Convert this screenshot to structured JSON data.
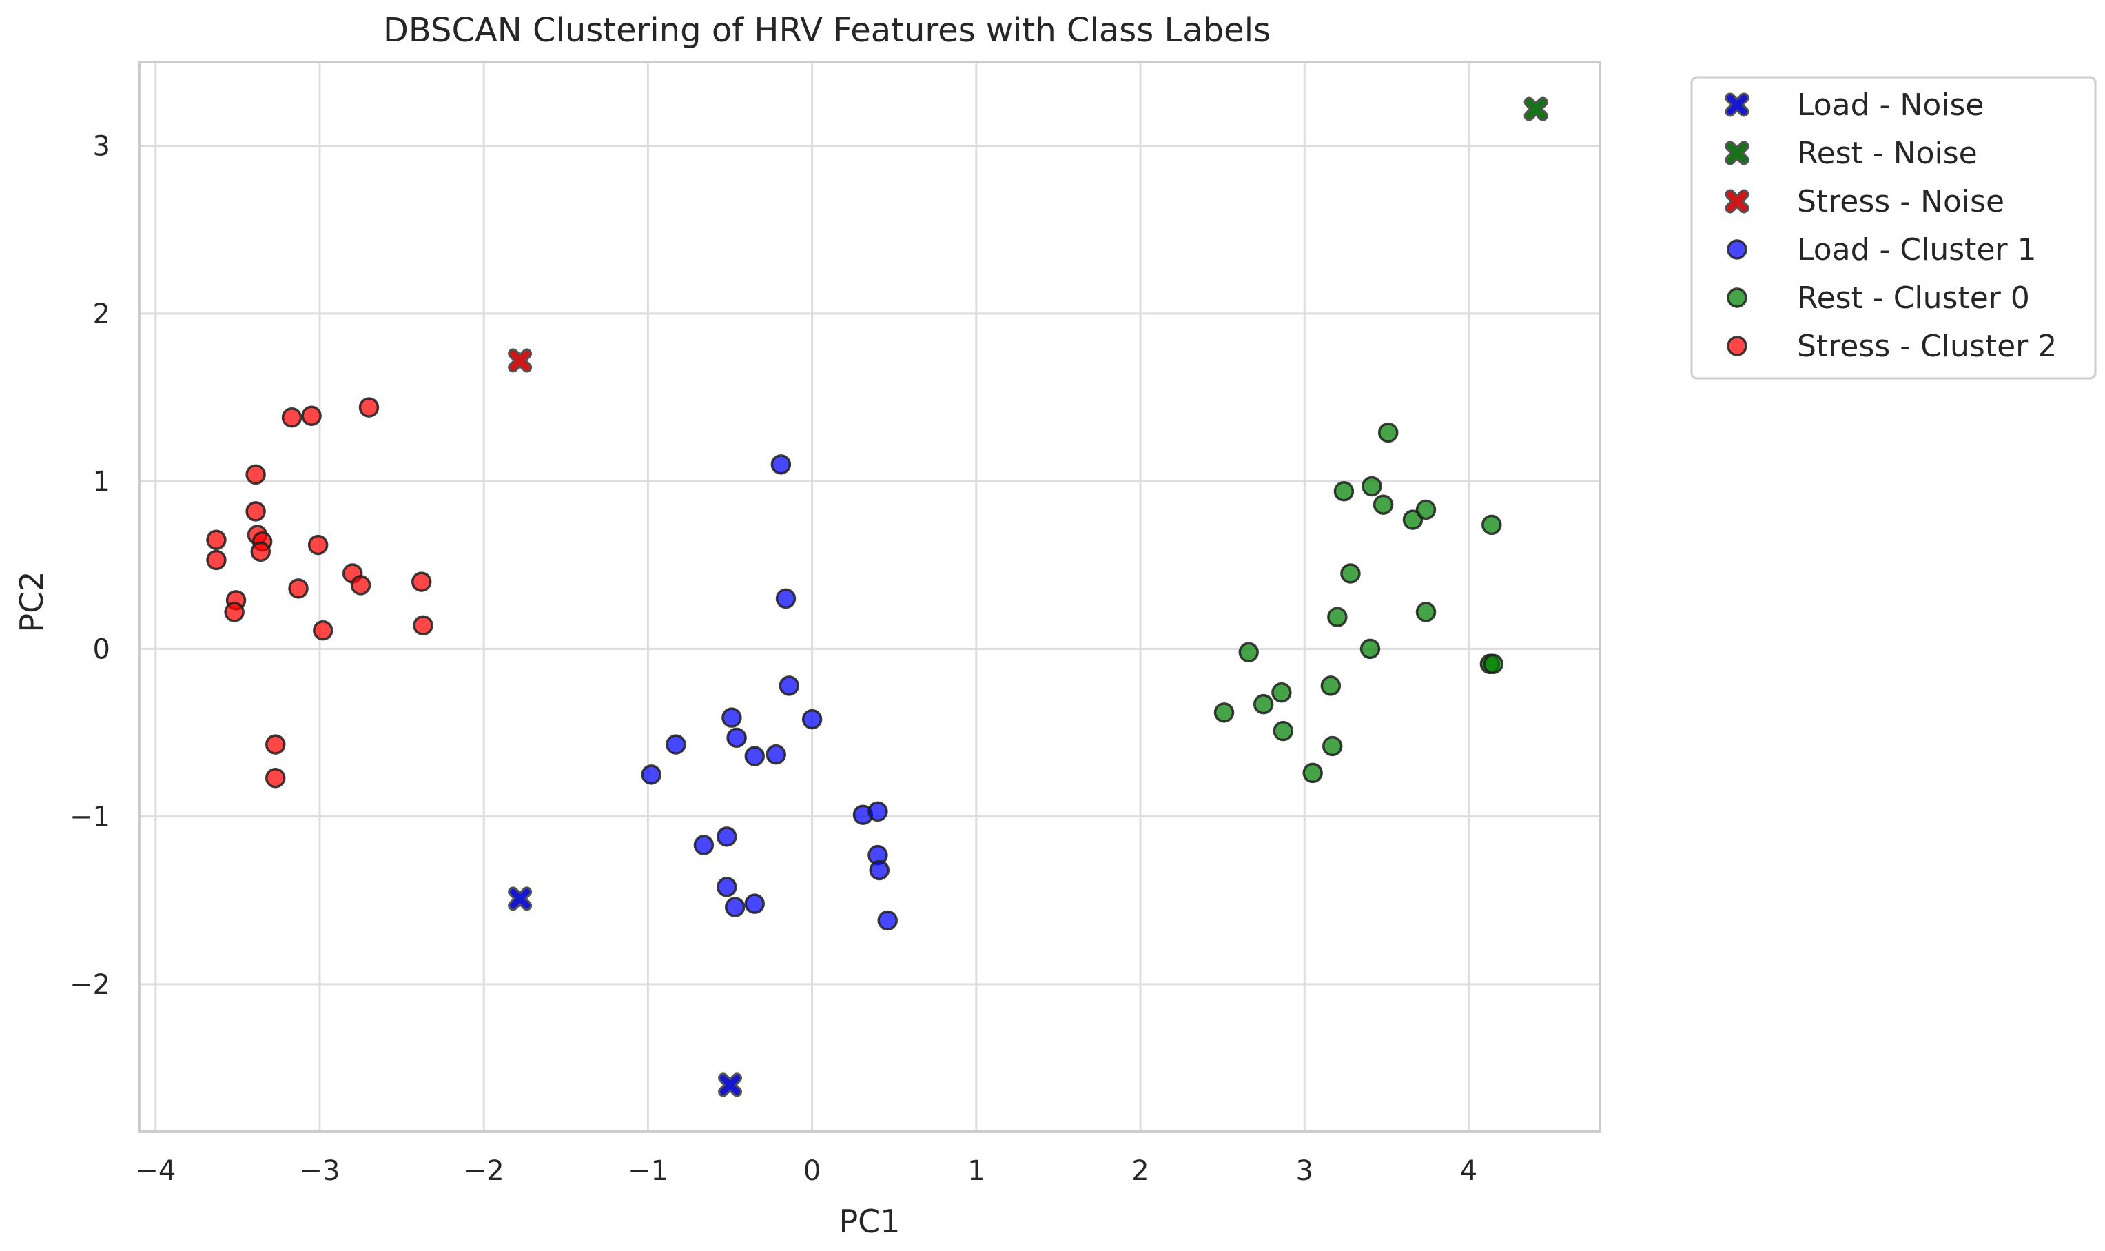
{
  "chart_data": {
    "type": "scatter",
    "title": "DBSCAN Clustering of HRV Features with Class Labels",
    "xlabel": "PC1",
    "ylabel": "PC2",
    "xlim": [
      -4.1,
      4.8
    ],
    "ylim": [
      -2.88,
      3.5
    ],
    "xticks": [
      {
        "value": -4,
        "label": "−4"
      },
      {
        "value": -3,
        "label": "−3"
      },
      {
        "value": -2,
        "label": "−2"
      },
      {
        "value": -1,
        "label": "−1"
      },
      {
        "value": 0,
        "label": "0"
      },
      {
        "value": 1,
        "label": "1"
      },
      {
        "value": 2,
        "label": "2"
      },
      {
        "value": 3,
        "label": "3"
      },
      {
        "value": 4,
        "label": "4"
      }
    ],
    "yticks": [
      {
        "value": -2,
        "label": "−2"
      },
      {
        "value": -1,
        "label": "−1"
      },
      {
        "value": 0,
        "label": "0"
      },
      {
        "value": 1,
        "label": "1"
      },
      {
        "value": 2,
        "label": "2"
      },
      {
        "value": 3,
        "label": "3"
      }
    ],
    "grid": true,
    "legend_position": "outside-upper-right",
    "series": [
      {
        "name": "Load - Noise",
        "marker": "x",
        "color": "#0000ff",
        "points": [
          [
            -1.78,
            -1.49
          ],
          [
            -0.5,
            -2.6
          ]
        ]
      },
      {
        "name": "Rest - Noise",
        "marker": "x",
        "color": "#008000",
        "points": [
          [
            4.41,
            3.22
          ]
        ]
      },
      {
        "name": "Stress - Noise",
        "marker": "x",
        "color": "#ff0000",
        "points": [
          [
            -1.78,
            1.72
          ]
        ]
      },
      {
        "name": "Load - Cluster 1",
        "marker": "circle",
        "color": "#0000ff",
        "points": [
          [
            -0.19,
            1.1
          ],
          [
            -0.16,
            0.3
          ],
          [
            -0.14,
            -0.22
          ],
          [
            -0.49,
            -0.41
          ],
          [
            -0.46,
            -0.53
          ],
          [
            0.0,
            -0.42
          ],
          [
            -0.83,
            -0.57
          ],
          [
            -0.98,
            -0.75
          ],
          [
            -0.35,
            -0.64
          ],
          [
            -0.22,
            -0.63
          ],
          [
            0.31,
            -0.99
          ],
          [
            0.4,
            -0.97
          ],
          [
            -0.52,
            -1.12
          ],
          [
            -0.66,
            -1.17
          ],
          [
            0.4,
            -1.23
          ],
          [
            0.41,
            -1.32
          ],
          [
            -0.52,
            -1.42
          ],
          [
            -0.47,
            -1.54
          ],
          [
            -0.35,
            -1.52
          ],
          [
            0.46,
            -1.62
          ]
        ]
      },
      {
        "name": "Rest - Cluster 0",
        "marker": "circle",
        "color": "#008000",
        "points": [
          [
            3.51,
            1.29
          ],
          [
            3.24,
            0.94
          ],
          [
            3.41,
            0.97
          ],
          [
            3.48,
            0.86
          ],
          [
            3.66,
            0.77
          ],
          [
            3.74,
            0.83
          ],
          [
            4.14,
            0.74
          ],
          [
            3.28,
            0.45
          ],
          [
            3.2,
            0.19
          ],
          [
            3.74,
            0.22
          ],
          [
            3.4,
            0.0
          ],
          [
            2.66,
            -0.02
          ],
          [
            4.13,
            -0.09
          ],
          [
            4.15,
            -0.09
          ],
          [
            2.86,
            -0.26
          ],
          [
            3.16,
            -0.22
          ],
          [
            2.75,
            -0.33
          ],
          [
            2.51,
            -0.38
          ],
          [
            2.87,
            -0.49
          ],
          [
            3.17,
            -0.58
          ],
          [
            3.05,
            -0.74
          ]
        ]
      },
      {
        "name": "Stress - Cluster 2",
        "marker": "circle",
        "color": "#ff0000",
        "points": [
          [
            -2.7,
            1.44
          ],
          [
            -3.05,
            1.39
          ],
          [
            -3.17,
            1.38
          ],
          [
            -3.39,
            1.04
          ],
          [
            -3.39,
            0.82
          ],
          [
            -3.38,
            0.68
          ],
          [
            -3.35,
            0.64
          ],
          [
            -3.36,
            0.58
          ],
          [
            -3.63,
            0.65
          ],
          [
            -3.63,
            0.53
          ],
          [
            -3.01,
            0.62
          ],
          [
            -2.8,
            0.45
          ],
          [
            -2.75,
            0.38
          ],
          [
            -2.38,
            0.4
          ],
          [
            -3.13,
            0.36
          ],
          [
            -3.51,
            0.29
          ],
          [
            -3.52,
            0.22
          ],
          [
            -2.98,
            0.11
          ],
          [
            -2.37,
            0.14
          ],
          [
            -3.27,
            -0.57
          ],
          [
            -3.27,
            -0.77
          ]
        ]
      }
    ]
  }
}
